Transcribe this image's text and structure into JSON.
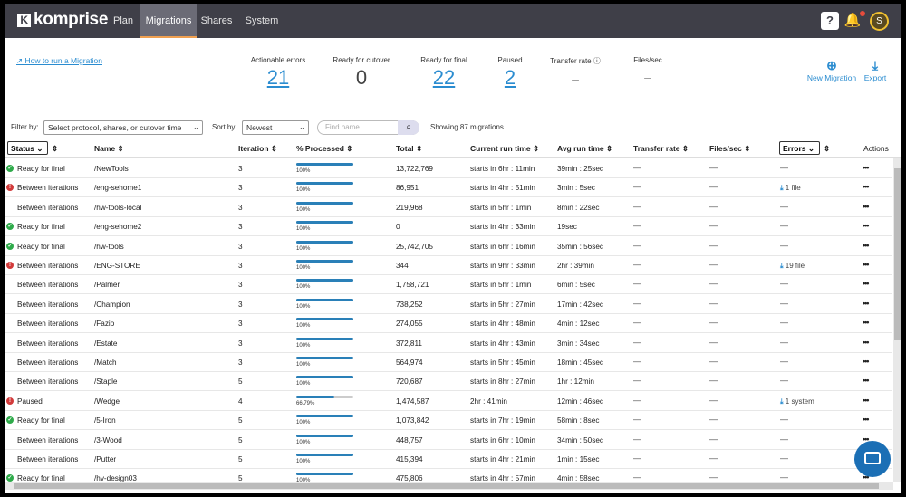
{
  "app": {
    "logo": "komprise"
  },
  "nav": [
    {
      "label": "Plan"
    },
    {
      "label": "Migrations"
    },
    {
      "label": "Shares"
    },
    {
      "label": "System"
    }
  ],
  "topbar": {
    "help": "?",
    "avatar": "S"
  },
  "summary": {
    "howto": "How to run a Migration",
    "stats": [
      {
        "label": "Actionable errors",
        "value": "21"
      },
      {
        "label": "Ready for cutover",
        "value": "0"
      },
      {
        "label": "Ready for final",
        "value": "22"
      },
      {
        "label": "Paused",
        "value": "2"
      },
      {
        "label": "Transfer rate",
        "value": "–"
      },
      {
        "label": "Files/sec",
        "value": "–"
      }
    ],
    "new_migration": "New Migration",
    "export": "Export"
  },
  "filters": {
    "filter_label": "Filter by:",
    "filter_value": "Select protocol, shares, or cutover time",
    "sort_label": "Sort by:",
    "sort_value": "Newest",
    "search_placeholder": "Find name",
    "showing": "Showing 87 migrations"
  },
  "table": {
    "columns": [
      "Status",
      "Name",
      "Iteration",
      "% Processed",
      "Total",
      "Current run time",
      "Avg run time",
      "Transfer rate",
      "Files/sec",
      "Errors",
      "Actions"
    ],
    "rows": [
      {
        "status": "Ready for final",
        "icon": "ok",
        "name": "/NewTools",
        "iteration": "3",
        "processed": 100,
        "processed_label": "100%",
        "total": "13,722,769",
        "current": "starts in 6hr : 11min",
        "avg": "39min : 25sec",
        "errors": "—"
      },
      {
        "status": "Between iterations",
        "icon": "err",
        "name": "/eng-sehome1",
        "iteration": "3",
        "processed": 100,
        "processed_label": "100%",
        "total": "86,951",
        "current": "starts in 4hr : 51min",
        "avg": "3min : 5sec",
        "errors": "1 file"
      },
      {
        "status": "Between iterations",
        "icon": "",
        "name": "/hw-tools-local",
        "iteration": "3",
        "processed": 100,
        "processed_label": "100%",
        "total": "219,968",
        "current": "starts in 5hr : 1min",
        "avg": "8min : 22sec",
        "errors": "—"
      },
      {
        "status": "Ready for final",
        "icon": "ok",
        "name": "/eng-sehome2",
        "iteration": "3",
        "processed": 100,
        "processed_label": "100%",
        "total": "0",
        "current": "starts in 4hr : 33min",
        "avg": "19sec",
        "errors": "—"
      },
      {
        "status": "Ready for final",
        "icon": "ok",
        "name": "/hw-tools",
        "iteration": "3",
        "processed": 100,
        "processed_label": "100%",
        "total": "25,742,705",
        "current": "starts in 6hr : 16min",
        "avg": "35min : 56sec",
        "errors": "—"
      },
      {
        "status": "Between iterations",
        "icon": "err",
        "name": "/ENG-STORE",
        "iteration": "3",
        "processed": 100,
        "processed_label": "100%",
        "total": "344",
        "current": "starts in 9hr : 33min",
        "avg": "2hr : 39min",
        "errors": "19 file"
      },
      {
        "status": "Between iterations",
        "icon": "",
        "name": "/Palmer",
        "iteration": "3",
        "processed": 100,
        "processed_label": "100%",
        "total": "1,758,721",
        "current": "starts in 5hr : 1min",
        "avg": "6min : 5sec",
        "errors": "—"
      },
      {
        "status": "Between iterations",
        "icon": "",
        "name": "/Champion",
        "iteration": "3",
        "processed": 100,
        "processed_label": "100%",
        "total": "738,252",
        "current": "starts in 5hr : 27min",
        "avg": "17min : 42sec",
        "errors": "—"
      },
      {
        "status": "Between iterations",
        "icon": "",
        "name": "/Fazio",
        "iteration": "3",
        "processed": 100,
        "processed_label": "100%",
        "total": "274,055",
        "current": "starts in 4hr : 48min",
        "avg": "4min : 12sec",
        "errors": "—"
      },
      {
        "status": "Between iterations",
        "icon": "",
        "name": "/Estate",
        "iteration": "3",
        "processed": 100,
        "processed_label": "100%",
        "total": "372,811",
        "current": "starts in 4hr : 43min",
        "avg": "3min : 34sec",
        "errors": "—"
      },
      {
        "status": "Between iterations",
        "icon": "",
        "name": "/Match",
        "iteration": "3",
        "processed": 100,
        "processed_label": "100%",
        "total": "564,974",
        "current": "starts in 5hr : 45min",
        "avg": "18min : 45sec",
        "errors": "—"
      },
      {
        "status": "Between iterations",
        "icon": "",
        "name": "/Staple",
        "iteration": "5",
        "processed": 100,
        "processed_label": "100%",
        "total": "720,687",
        "current": "starts in 8hr : 27min",
        "avg": "1hr : 12min",
        "errors": "—"
      },
      {
        "status": "Paused",
        "icon": "err",
        "name": "/Wedge",
        "iteration": "4",
        "processed": 66.79,
        "processed_label": "66.79%",
        "total": "1,474,587",
        "current": "2hr : 41min",
        "avg": "12min : 46sec",
        "errors": "1 system"
      },
      {
        "status": "Ready for final",
        "icon": "ok",
        "name": "/5-Iron",
        "iteration": "5",
        "processed": 100,
        "processed_label": "100%",
        "total": "1,073,842",
        "current": "starts in 7hr : 19min",
        "avg": "58min : 8sec",
        "errors": "—"
      },
      {
        "status": "Between iterations",
        "icon": "",
        "name": "/3-Wood",
        "iteration": "5",
        "processed": 100,
        "processed_label": "100%",
        "total": "448,757",
        "current": "starts in 6hr : 10min",
        "avg": "34min : 50sec",
        "errors": "—"
      },
      {
        "status": "Between iterations",
        "icon": "",
        "name": "/Putter",
        "iteration": "5",
        "processed": 100,
        "processed_label": "100%",
        "total": "415,394",
        "current": "starts in 4hr : 21min",
        "avg": "1min : 15sec",
        "errors": "—"
      },
      {
        "status": "Ready for final",
        "icon": "ok",
        "name": "/hv-design03",
        "iteration": "5",
        "processed": 100,
        "processed_label": "100%",
        "total": "475,806",
        "current": "starts in 4hr : 57min",
        "avg": "4min : 58sec",
        "errors": "—"
      }
    ]
  }
}
